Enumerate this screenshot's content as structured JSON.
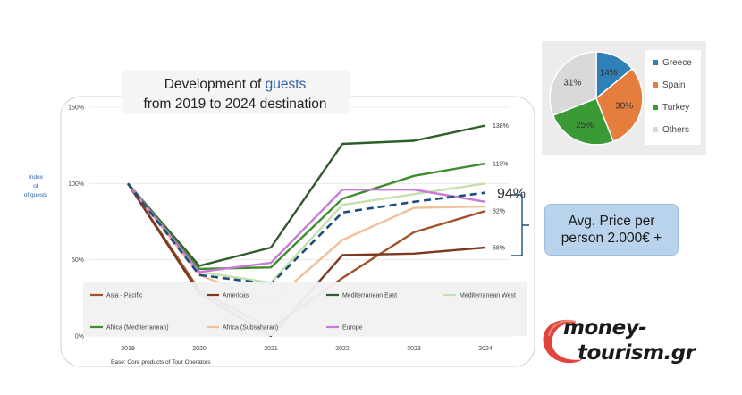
{
  "title_line1_prefix": "Development of ",
  "title_line1_highlight": "guests",
  "title_line2": "from 2019 to 2024 destination",
  "callout_text": "Avg. Price per person 2.000€ +",
  "logo_line1": "money-",
  "logo_line2": "tourism.gr",
  "colors": {
    "highlight": "#2e5fa8",
    "asia_pacific": "#a0522d",
    "americas": "#7b3a1f",
    "med_east": "#2f5d2a",
    "med_west": "#c5dfae",
    "africa_med": "#3f8b2f",
    "africa_sub": "#f0c09a",
    "europe": "#c77ad6",
    "dashed": "#1f4e79",
    "pie_greece": "#2f7fb8",
    "pie_spain": "#e57d3d",
    "pie_turkey": "#3a9a35",
    "pie_others": "#d9d9d9"
  },
  "chart_data": [
    {
      "type": "line",
      "title": "Development of guests from 2019 to 2024 destination",
      "ylabel": "Index of guests",
      "ylim": [
        0,
        150
      ],
      "yticks": [
        "0%",
        "50%",
        "100%",
        "150%"
      ],
      "x": [
        "2019",
        "2020",
        "2021",
        "2022",
        "2023",
        "2024"
      ],
      "footnote": "Base: Core products of Tour Operators",
      "series": [
        {
          "name": "Asia - Pacific",
          "color_key": "asia_pacific",
          "values": [
            100,
            30,
            5,
            38,
            68,
            82
          ]
        },
        {
          "name": "Americas",
          "color_key": "americas",
          "values": [
            100,
            28,
            0,
            53,
            54,
            58
          ]
        },
        {
          "name": "Mediterranean East",
          "color_key": "med_east",
          "values": [
            100,
            46,
            58,
            126,
            128,
            138
          ]
        },
        {
          "name": "Mediterranean West",
          "color_key": "med_west",
          "values": [
            100,
            42,
            35,
            86,
            93,
            100
          ]
        },
        {
          "name": "Africa (Mediterranean)",
          "color_key": "africa_med",
          "values": [
            100,
            44,
            45,
            90,
            105,
            113
          ]
        },
        {
          "name": "Africa (Subsaharan)",
          "color_key": "africa_sub",
          "values": [
            100,
            40,
            22,
            63,
            84,
            85
          ]
        },
        {
          "name": "Europe",
          "color_key": "europe",
          "values": [
            100,
            42,
            48,
            96,
            96,
            88
          ]
        },
        {
          "name": "",
          "color_key": "dashed",
          "dashed": true,
          "values": [
            100,
            40,
            34,
            81,
            88,
            94
          ]
        }
      ],
      "end_labels": [
        {
          "text": "138%",
          "value": 138
        },
        {
          "text": "113%",
          "value": 113
        },
        {
          "text": "94%",
          "value": 94,
          "large": true
        },
        {
          "text": "82%",
          "value": 82
        },
        {
          "text": "58%",
          "value": 58
        }
      ],
      "legend": [
        {
          "name": "Asia - Pacific",
          "color_key": "asia_pacific"
        },
        {
          "name": "Americas",
          "color_key": "americas"
        },
        {
          "name": "Mediterranean East",
          "color_key": "med_east"
        },
        {
          "name": "Mediterranean West",
          "color_key": "med_west"
        },
        {
          "name": "Africa (Mediterranean)",
          "color_key": "africa_med"
        },
        {
          "name": "Africa (Subsaharan)",
          "color_key": "africa_sub"
        },
        {
          "name": "Europe",
          "color_key": "europe"
        }
      ]
    },
    {
      "type": "pie",
      "slices": [
        {
          "name": "Greece",
          "value": 14,
          "label": "14%",
          "color_key": "pie_greece"
        },
        {
          "name": "Spain",
          "value": 30,
          "label": "30%",
          "color_key": "pie_spain"
        },
        {
          "name": "Turkey",
          "value": 25,
          "label": "25%",
          "color_key": "pie_turkey"
        },
        {
          "name": "Others",
          "value": 31,
          "label": "31%",
          "color_key": "pie_others"
        }
      ]
    }
  ]
}
